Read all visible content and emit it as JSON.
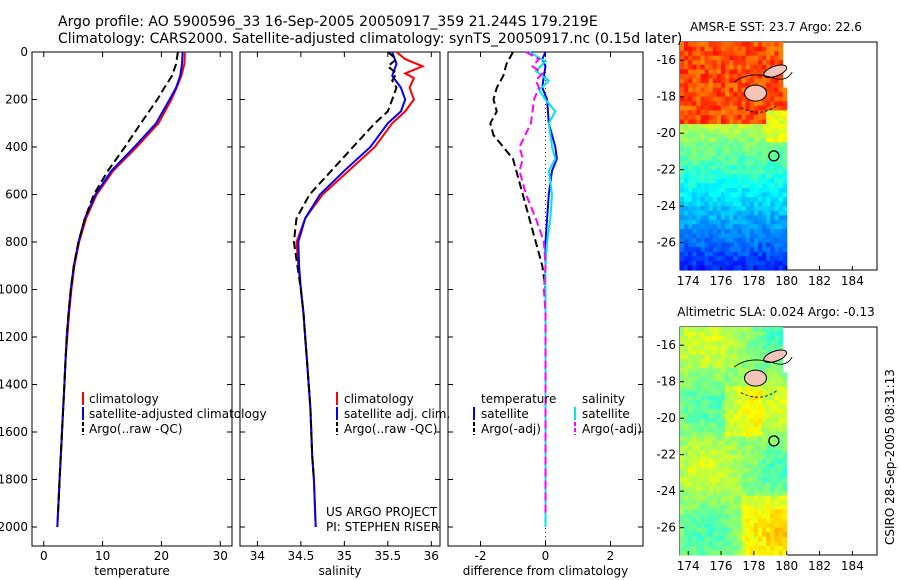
{
  "figure": {
    "title_line1": "Argo profile: AO 5900596_33 16-Sep-2005 20050917_359 21.244S 179.219E",
    "title_line2": "Climatology: CARS2000. Satellite-adjusted climatology: synTS_20050917.nc (0.15d later)",
    "side_label": "CSIRO 28-Sep-2005 08:31:13",
    "project_line1": "US ARGO PROJECT",
    "project_line2": "PI: STEPHEN RISER"
  },
  "chart_data": [
    {
      "type": "line",
      "id": "temperature",
      "xlabel": "temperature",
      "xlim": [
        -2,
        32
      ],
      "xticks": [
        0,
        10,
        20,
        30
      ],
      "ylim": [
        2080,
        0
      ],
      "yticks": [
        0,
        200,
        400,
        600,
        800,
        1000,
        1200,
        1400,
        1600,
        1800,
        2000
      ],
      "legend": [
        "climatology",
        "satellite-adjusted climatology",
        "Argo(..raw -QC)"
      ],
      "series": [
        {
          "name": "climatology",
          "color": "#ff0000",
          "dash": "",
          "points": [
            [
              24,
              0
            ],
            [
              23.9,
              50
            ],
            [
              23.4,
              100
            ],
            [
              22.6,
              150
            ],
            [
              21.7,
              200
            ],
            [
              19.5,
              300
            ],
            [
              15.8,
              400
            ],
            [
              11.8,
              500
            ],
            [
              9.0,
              600
            ],
            [
              7.2,
              700
            ],
            [
              6.0,
              800
            ],
            [
              5.2,
              900
            ],
            [
              4.7,
              1000
            ],
            [
              4.3,
              1100
            ],
            [
              4.0,
              1200
            ],
            [
              3.7,
              1300
            ],
            [
              3.5,
              1400
            ],
            [
              3.3,
              1500
            ],
            [
              3.1,
              1600
            ],
            [
              2.9,
              1700
            ],
            [
              2.7,
              1800
            ],
            [
              2.5,
              1900
            ],
            [
              2.4,
              1950
            ],
            [
              2.3,
              2000
            ]
          ]
        },
        {
          "name": "satellite-adjusted climatology",
          "color": "#0000ff",
          "dash": "",
          "points": [
            [
              23.6,
              0
            ],
            [
              23.5,
              50
            ],
            [
              23.2,
              100
            ],
            [
              22.5,
              150
            ],
            [
              21.4,
              200
            ],
            [
              19.1,
              300
            ],
            [
              15.4,
              400
            ],
            [
              11.5,
              500
            ],
            [
              8.8,
              600
            ],
            [
              7.0,
              700
            ],
            [
              5.9,
              800
            ],
            [
              5.1,
              900
            ],
            [
              4.6,
              1000
            ],
            [
              4.2,
              1100
            ],
            [
              3.9,
              1200
            ],
            [
              3.7,
              1300
            ],
            [
              3.5,
              1400
            ],
            [
              3.3,
              1500
            ],
            [
              3.1,
              1600
            ],
            [
              2.9,
              1700
            ],
            [
              2.7,
              1800
            ],
            [
              2.5,
              1900
            ],
            [
              2.4,
              1950
            ],
            [
              2.3,
              2000
            ]
          ]
        },
        {
          "name": "Argo(..raw -QC)",
          "color": "#000000",
          "dash": "8,4",
          "points": [
            [
              22.8,
              0
            ],
            [
              22.5,
              50
            ],
            [
              21.8,
              100
            ],
            [
              20.5,
              150
            ],
            [
              19.3,
              200
            ],
            [
              16.5,
              300
            ],
            [
              13.8,
              400
            ],
            [
              10.9,
              500
            ],
            [
              8.5,
              600
            ],
            [
              7.0,
              700
            ],
            [
              5.9,
              800
            ],
            [
              5.1,
              900
            ],
            [
              4.6,
              1000
            ],
            [
              4.2,
              1100
            ],
            [
              3.9,
              1200
            ],
            [
              3.7,
              1300
            ],
            [
              3.5,
              1400
            ],
            [
              3.3,
              1500
            ],
            [
              3.1,
              1600
            ],
            [
              2.9,
              1700
            ],
            [
              2.7,
              1800
            ],
            [
              2.5,
              1900
            ],
            [
              2.4,
              1950
            ]
          ]
        }
      ]
    },
    {
      "type": "line",
      "id": "salinity",
      "xlabel": "salinity",
      "xlim": [
        33.8,
        36.1
      ],
      "xticks": [
        34,
        34.5,
        35,
        35.5,
        36
      ],
      "ylim": [
        2080,
        0
      ],
      "yticks": [
        0,
        200,
        400,
        600,
        800,
        1000,
        1200,
        1400,
        1600,
        1800,
        2000
      ],
      "legend": [
        "climatology",
        "satellite adj. clim.",
        "Argo(..raw -QC)"
      ],
      "series": [
        {
          "name": "climatology",
          "color": "#ff0000",
          "dash": "",
          "points": [
            [
              35.6,
              0
            ],
            [
              35.7,
              30
            ],
            [
              35.9,
              60
            ],
            [
              35.7,
              90
            ],
            [
              35.8,
              110
            ],
            [
              35.75,
              150
            ],
            [
              35.8,
              200
            ],
            [
              35.7,
              250
            ],
            [
              35.55,
              300
            ],
            [
              35.35,
              400
            ],
            [
              35.05,
              500
            ],
            [
              34.75,
              600
            ],
            [
              34.55,
              700
            ],
            [
              34.45,
              800
            ],
            [
              34.47,
              900
            ],
            [
              34.5,
              1000
            ],
            [
              34.53,
              1100
            ],
            [
              34.55,
              1200
            ],
            [
              34.57,
              1300
            ],
            [
              34.59,
              1400
            ],
            [
              34.61,
              1500
            ],
            [
              34.62,
              1600
            ],
            [
              34.63,
              1700
            ],
            [
              34.65,
              1800
            ],
            [
              34.66,
              1900
            ],
            [
              34.67,
              2000
            ]
          ]
        },
        {
          "name": "satellite adj. clim.",
          "color": "#0000ff",
          "dash": "",
          "points": [
            [
              35.55,
              0
            ],
            [
              35.6,
              50
            ],
            [
              35.55,
              100
            ],
            [
              35.65,
              150
            ],
            [
              35.7,
              200
            ],
            [
              35.65,
              250
            ],
            [
              35.5,
              300
            ],
            [
              35.3,
              400
            ],
            [
              35.0,
              500
            ],
            [
              34.72,
              600
            ],
            [
              34.55,
              700
            ],
            [
              34.47,
              800
            ],
            [
              34.48,
              900
            ],
            [
              34.5,
              1000
            ],
            [
              34.53,
              1100
            ],
            [
              34.55,
              1200
            ],
            [
              34.57,
              1300
            ],
            [
              34.59,
              1400
            ],
            [
              34.61,
              1500
            ],
            [
              34.62,
              1600
            ],
            [
              34.63,
              1700
            ],
            [
              34.65,
              1800
            ],
            [
              34.66,
              1900
            ],
            [
              34.67,
              2000
            ]
          ]
        },
        {
          "name": "Argo(..raw -QC)",
          "color": "#000000",
          "dash": "8,4",
          "points": [
            [
              35.5,
              0
            ],
            [
              35.6,
              30
            ],
            [
              35.5,
              60
            ],
            [
              35.6,
              90
            ],
            [
              35.55,
              120
            ],
            [
              35.6,
              150
            ],
            [
              35.55,
              200
            ],
            [
              35.5,
              250
            ],
            [
              35.35,
              300
            ],
            [
              35.1,
              400
            ],
            [
              34.85,
              500
            ],
            [
              34.6,
              600
            ],
            [
              34.45,
              700
            ],
            [
              34.42,
              800
            ],
            [
              34.46,
              900
            ],
            [
              34.5,
              1000
            ],
            [
              34.53,
              1100
            ],
            [
              34.55,
              1200
            ],
            [
              34.57,
              1300
            ],
            [
              34.59,
              1400
            ],
            [
              34.61,
              1500
            ],
            [
              34.62,
              1600
            ],
            [
              34.63,
              1700
            ],
            [
              34.65,
              1800
            ]
          ]
        }
      ]
    },
    {
      "type": "line",
      "id": "difference",
      "xlabel": "difference from climatology",
      "xlim": [
        -3,
        3
      ],
      "xticks": [
        -2,
        0,
        2
      ],
      "ylim": [
        2080,
        0
      ],
      "yticks": [
        0,
        200,
        400,
        600,
        800,
        1000,
        1200,
        1400,
        1600,
        1800,
        2000
      ],
      "legend": [
        {
          "header": "temperature",
          "items": [
            "satellite",
            "Argo(-adj)"
          ]
        },
        {
          "header": "salinity",
          "items": [
            "satellite",
            "Argo(-adj)"
          ]
        }
      ],
      "series": [
        {
          "name": "satellite",
          "quantity": "temperature",
          "color": "#0000ff",
          "dash": "",
          "points": [
            [
              0,
              0
            ],
            [
              -0.1,
              30
            ],
            [
              0,
              60
            ],
            [
              -0.05,
              100
            ],
            [
              -0.1,
              150
            ],
            [
              0.05,
              200
            ],
            [
              0.1,
              300
            ],
            [
              0.3,
              400
            ],
            [
              0.35,
              450
            ],
            [
              0.2,
              500
            ],
            [
              0.1,
              600
            ],
            [
              0.05,
              700
            ],
            [
              0,
              800
            ],
            [
              0,
              1000
            ],
            [
              0,
              1200
            ],
            [
              0,
              1500
            ],
            [
              0,
              2000
            ]
          ]
        },
        {
          "name": "Argo(-adj)",
          "quantity": "temperature",
          "color": "#000000",
          "dash": "8,4",
          "points": [
            [
              -1.0,
              0
            ],
            [
              -1.2,
              50
            ],
            [
              -1.3,
              100
            ],
            [
              -1.5,
              150
            ],
            [
              -1.6,
              200
            ],
            [
              -1.5,
              250
            ],
            [
              -1.7,
              300
            ],
            [
              -1.6,
              350
            ],
            [
              -1.3,
              400
            ],
            [
              -1.0,
              450
            ],
            [
              -0.9,
              500
            ],
            [
              -0.7,
              600
            ],
            [
              -0.5,
              700
            ],
            [
              -0.3,
              800
            ],
            [
              -0.1,
              900
            ],
            [
              0,
              1000
            ],
            [
              0,
              1200
            ],
            [
              0,
              1500
            ],
            [
              0,
              1950
            ]
          ]
        },
        {
          "name": "satellite",
          "quantity": "salinity",
          "color": "#00e5e5",
          "dash": "",
          "points": [
            [
              -0.5,
              0
            ],
            [
              0,
              40
            ],
            [
              -0.3,
              80
            ],
            [
              0.1,
              120
            ],
            [
              -0.2,
              160
            ],
            [
              0,
              200
            ],
            [
              0.3,
              250
            ],
            [
              0.1,
              300
            ],
            [
              0.2,
              400
            ],
            [
              0.3,
              450
            ],
            [
              0.1,
              500
            ],
            [
              0.2,
              600
            ],
            [
              0.15,
              700
            ],
            [
              0.05,
              800
            ],
            [
              0,
              900
            ],
            [
              0,
              1000
            ],
            [
              0,
              1200
            ],
            [
              0,
              1500
            ],
            [
              0,
              2000
            ]
          ]
        },
        {
          "name": "Argo(-adj)",
          "quantity": "salinity",
          "color": "#ff00ff",
          "dash": "8,4",
          "points": [
            [
              -0.6,
              0
            ],
            [
              -0.2,
              30
            ],
            [
              -0.4,
              60
            ],
            [
              -0.1,
              90
            ],
            [
              -0.3,
              120
            ],
            [
              -0.2,
              150
            ],
            [
              -0.35,
              200
            ],
            [
              -0.45,
              300
            ],
            [
              -0.8,
              400
            ],
            [
              -0.7,
              450
            ],
            [
              -0.8,
              500
            ],
            [
              -0.6,
              600
            ],
            [
              -0.3,
              700
            ],
            [
              -0.05,
              800
            ],
            [
              0,
              900
            ],
            [
              -0.05,
              1000
            ],
            [
              0,
              1100
            ],
            [
              0,
              1200
            ],
            [
              0,
              1500
            ],
            [
              0,
              1950
            ]
          ]
        }
      ]
    },
    {
      "type": "heatmap",
      "id": "amsr_sst",
      "title": "AMSR-E SST: 23.7  Argo: 22.6",
      "colormap": "jet",
      "xlim": [
        173.5,
        185.5
      ],
      "xticks": [
        174,
        176,
        178,
        180,
        182,
        184
      ],
      "ylim": [
        -27.5,
        -15
      ],
      "yticks": [
        -16,
        -18,
        -20,
        -22,
        -24,
        -26
      ],
      "data_xrange": [
        173.5,
        180
      ],
      "marker": {
        "lon": 179.219,
        "lat": -21.244
      }
    },
    {
      "type": "heatmap",
      "id": "altimetric_sla",
      "title": "Altimetric SLA: 0.024  Argo: -0.13",
      "colormap": "jet",
      "xlim": [
        173.5,
        185.5
      ],
      "xticks": [
        174,
        176,
        178,
        180,
        182,
        184
      ],
      "ylim": [
        -27.5,
        -15
      ],
      "yticks": [
        -16,
        -18,
        -20,
        -22,
        -24,
        -26
      ],
      "data_xrange": [
        173.5,
        180
      ],
      "marker": {
        "lon": 179.219,
        "lat": -21.244
      }
    }
  ]
}
